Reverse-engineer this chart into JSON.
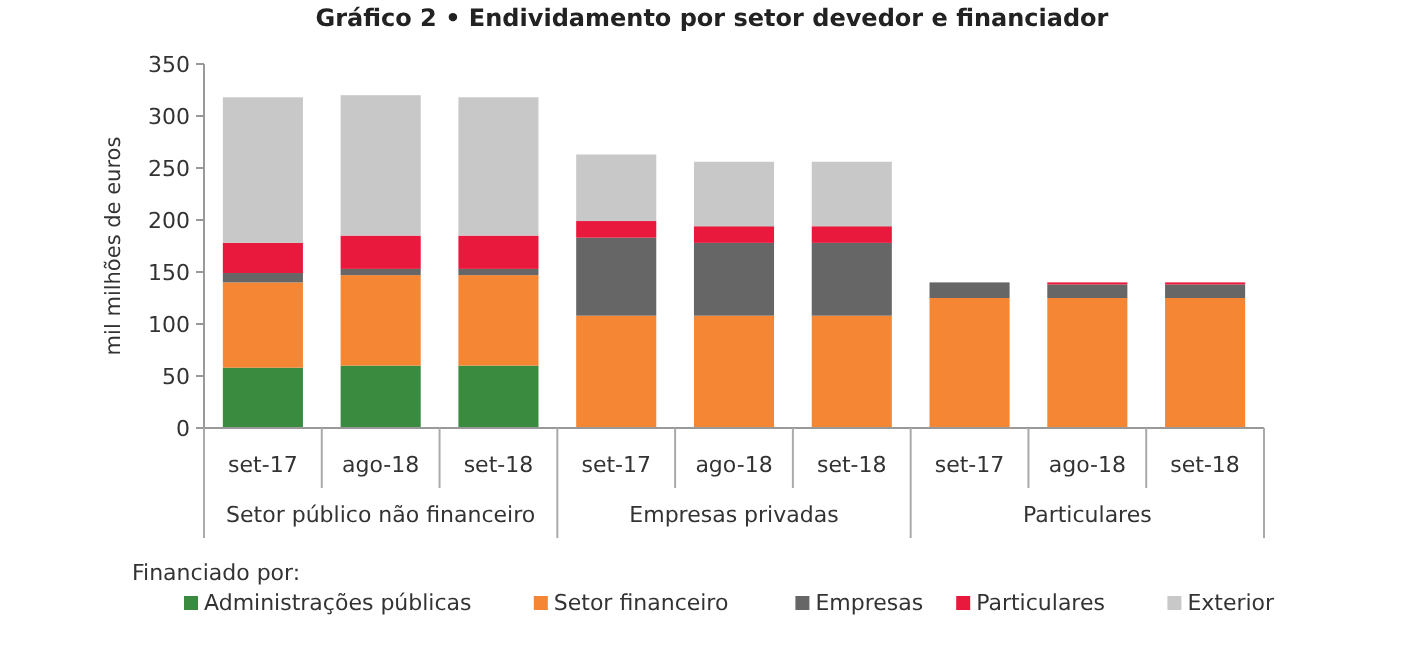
{
  "chart_data": {
    "type": "bar",
    "stacked": true,
    "title": "Gráfico 2 • Endividamento por setor devedor e financiador",
    "ylabel": "mil milhões de euros",
    "categories": [
      "set-17",
      "ago-18",
      "set-18",
      "set-17",
      "ago-18",
      "set-18",
      "set-17",
      "ago-18",
      "set-18"
    ],
    "annotations": [
      "Setor público não financeiro",
      "Empresas privadas",
      "Particulares"
    ],
    "legend_title": "Financiado por:",
    "legend": "bottom",
    "ylim": [
      0,
      350
    ],
    "yticks": [
      0,
      50,
      100,
      150,
      200,
      250,
      300,
      350
    ],
    "series": [
      {
        "name": "Administrações públicas",
        "color": "#3a8a3f",
        "values": [
          58,
          60,
          60,
          0,
          0,
          0,
          0,
          0,
          0
        ]
      },
      {
        "name": "Setor financeiro",
        "color": "#f58634",
        "values": [
          82,
          87,
          87,
          108,
          108,
          108,
          125,
          125,
          125
        ]
      },
      {
        "name": "Empresas",
        "color": "#666666",
        "values": [
          9,
          6,
          6,
          75,
          70,
          70,
          15,
          13,
          13
        ]
      },
      {
        "name": "Particulares",
        "color": "#e8193c",
        "values": [
          29,
          32,
          32,
          16,
          16,
          16,
          0,
          2,
          2
        ]
      },
      {
        "name": "Exterior",
        "color": "#c8c8c8",
        "values": [
          140,
          135,
          133,
          64,
          62,
          62,
          0,
          0,
          0
        ]
      }
    ]
  }
}
